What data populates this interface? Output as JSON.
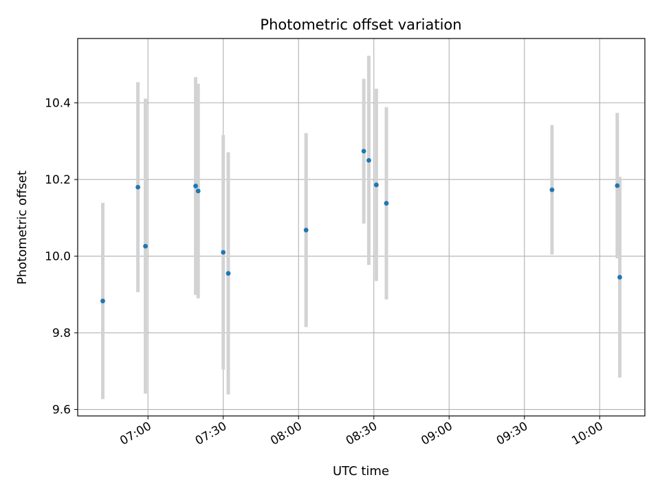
{
  "chart_data": {
    "type": "scatter",
    "title": "Photometric offset variation",
    "xlabel": "UTC time",
    "ylabel": "Photometric offset",
    "x_tick_labels": [
      "07:00",
      "07:30",
      "08:00",
      "08:30",
      "09:00",
      "09:30",
      "10:00"
    ],
    "x_ticks": [
      "07:00",
      "07:30",
      "08:00",
      "08:30",
      "09:00",
      "09:30",
      "10:00"
    ],
    "xlim": [
      "06:32",
      "10:18"
    ],
    "y_ticks": [
      9.6,
      9.8,
      10.0,
      10.2,
      10.4
    ],
    "y_tick_labels": [
      "9.6",
      "9.8",
      "10.0",
      "10.2",
      "10.4"
    ],
    "ylim": [
      9.583,
      10.568
    ],
    "grid": true,
    "marker_color": "#1f77b4",
    "errorbar_color": "#d3d3d3",
    "points": [
      {
        "time": "06:42",
        "y": 9.883,
        "err": 0.256
      },
      {
        "time": "06:56",
        "y": 10.18,
        "err": 0.274
      },
      {
        "time": "06:59",
        "y": 10.026,
        "err": 0.385
      },
      {
        "time": "07:19",
        "y": 10.183,
        "err": 0.284
      },
      {
        "time": "07:20",
        "y": 10.17,
        "err": 0.28
      },
      {
        "time": "07:30",
        "y": 10.01,
        "err": 0.306
      },
      {
        "time": "07:32",
        "y": 9.955,
        "err": 0.316
      },
      {
        "time": "08:03",
        "y": 10.068,
        "err": 0.253
      },
      {
        "time": "08:26",
        "y": 10.274,
        "err": 0.189
      },
      {
        "time": "08:28",
        "y": 10.25,
        "err": 0.273
      },
      {
        "time": "08:31",
        "y": 10.186,
        "err": 0.251
      },
      {
        "time": "08:35",
        "y": 10.138,
        "err": 0.251
      },
      {
        "time": "09:41",
        "y": 10.173,
        "err": 0.169
      },
      {
        "time": "10:07",
        "y": 10.184,
        "err": 0.19
      },
      {
        "time": "10:08",
        "y": 9.945,
        "err": 0.262
      }
    ]
  }
}
